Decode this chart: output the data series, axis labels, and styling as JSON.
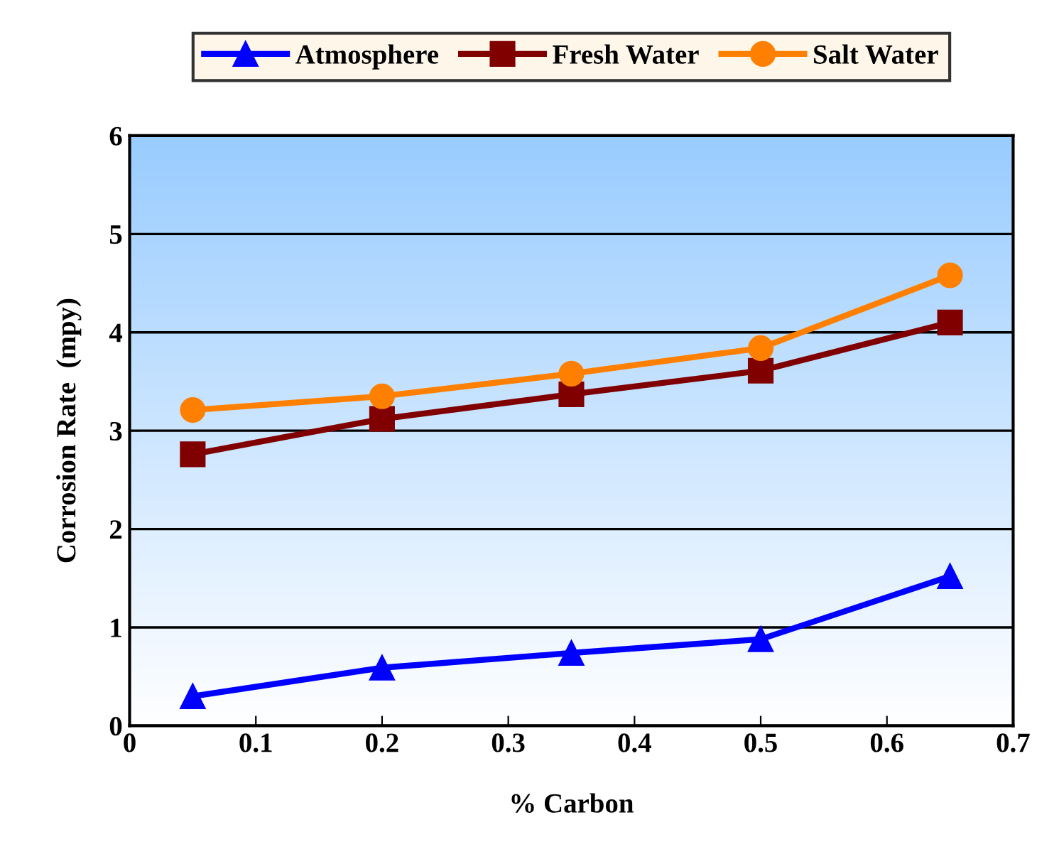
{
  "chart_data": {
    "type": "line",
    "xlabel": "% Carbon",
    "ylabel": "Corrosion Rate  (mpy)",
    "x": [
      0.05,
      0.2,
      0.35,
      0.5,
      0.65
    ],
    "series": [
      {
        "name": "Atmosphere",
        "color": "#0000ff",
        "marker": "triangle",
        "values": [
          0.3,
          0.59,
          0.74,
          0.88,
          1.52
        ]
      },
      {
        "name": "Fresh Water",
        "color": "#800000",
        "marker": "square",
        "values": [
          2.76,
          3.12,
          3.37,
          3.61,
          4.1
        ]
      },
      {
        "name": "Salt Water",
        "color": "#ff8000",
        "marker": "circle",
        "values": [
          3.21,
          3.35,
          3.58,
          3.84,
          4.58
        ]
      }
    ],
    "xlim": [
      0,
      0.7
    ],
    "xticks": [
      0,
      0.1,
      0.2,
      0.3,
      0.4,
      0.5,
      0.6,
      0.7
    ],
    "ylim": [
      0,
      6
    ],
    "yticks": [
      0,
      1,
      2,
      3,
      4,
      5,
      6
    ],
    "grid": "y",
    "legend": "top",
    "line_style": "solid"
  }
}
